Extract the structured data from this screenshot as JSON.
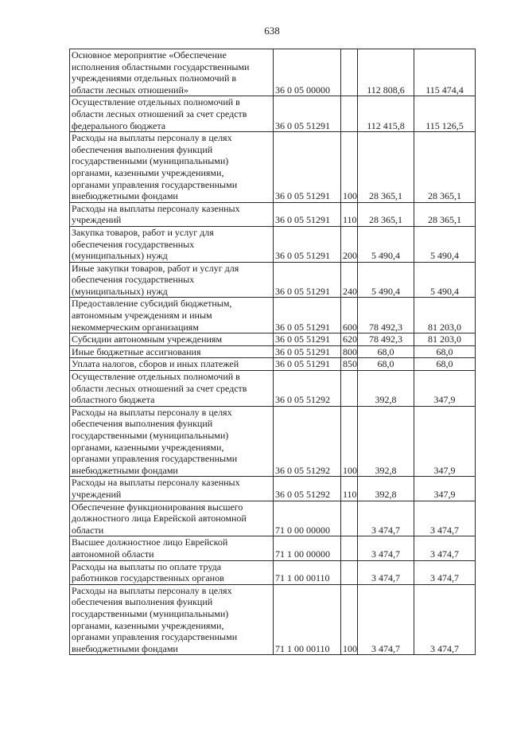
{
  "page": {
    "number": "638"
  },
  "table": {
    "columns": [
      "description",
      "code",
      "vid",
      "amount1",
      "amount2"
    ],
    "rows": [
      {
        "description": "Основное мероприятие «Обеспечение\nисполнения областными государственными\nучреждениями отдельных полномочий в\nобласти лесных отношений»",
        "code": "36 0 05 00000",
        "vid": "",
        "amount1": "112 808,6",
        "amount2": "115 474,4"
      },
      {
        "description": "Осуществление отдельных полномочий в\nобласти лесных отношений за счет средств\nфедерального бюджета",
        "code": "36 0 05 51291",
        "vid": "",
        "amount1": "112 415,8",
        "amount2": "115 126,5"
      },
      {
        "description": "Расходы на выплаты персоналу в целях\nобеспечения выполнения функций\nгосударственными (муниципальными)\nорганами, казенными учреждениями,\nорганами управления государственными\nвнебюджетными фондами",
        "code": "36 0 05 51291",
        "vid": "100",
        "amount1": "28 365,1",
        "amount2": "28 365,1"
      },
      {
        "description": "Расходы на выплаты персоналу казенных\nучреждений",
        "code": "36 0 05 51291",
        "vid": "110",
        "amount1": "28 365,1",
        "amount2": "28 365,1"
      },
      {
        "description": "Закупка товаров, работ и услуг для\nобеспечения государственных\n(муниципальных) нужд",
        "code": "36 0 05 51291",
        "vid": "200",
        "amount1": "5 490,4",
        "amount2": "5 490,4"
      },
      {
        "description": "Иные закупки товаров, работ и услуг для\nобеспечения государственных\n(муниципальных) нужд",
        "code": "36 0 05 51291",
        "vid": "240",
        "amount1": "5 490,4",
        "amount2": "5 490,4"
      },
      {
        "description": "Предоставление субсидий бюджетным,\nавтономным учреждениям и иным\nнекоммерческим организациям",
        "code": "36 0 05 51291",
        "vid": "600",
        "amount1": "78 492,3",
        "amount2": "81 203,0"
      },
      {
        "description": "Субсидии автономным учреждениям",
        "code": "36 0 05 51291",
        "vid": "620",
        "amount1": "78 492,3",
        "amount2": "81 203,0"
      },
      {
        "description": "Иные бюджетные ассигнования",
        "code": "36 0 05 51291",
        "vid": "800",
        "amount1": "68,0",
        "amount2": "68,0"
      },
      {
        "description": "Уплата налогов, сборов и иных платежей",
        "code": "36 0 05 51291",
        "vid": "850",
        "amount1": "68,0",
        "amount2": "68,0"
      },
      {
        "description": "Осуществление отдельных полномочий в\nобласти лесных отношений за счет средств\nобластного бюджета",
        "code": "36 0 05 51292",
        "vid": "",
        "amount1": "392,8",
        "amount2": "347,9"
      },
      {
        "description": "Расходы на выплаты персоналу в целях\nобеспечения выполнения функций\nгосударственными (муниципальными)\nорганами, казенными учреждениями,\nорганами управления государственными\nвнебюджетными фондами",
        "code": "36 0 05 51292",
        "vid": "100",
        "amount1": "392,8",
        "amount2": "347,9"
      },
      {
        "description": "Расходы на выплаты персоналу казенных\nучреждений",
        "code": "36 0 05 51292",
        "vid": "110",
        "amount1": "392,8",
        "amount2": "347,9"
      },
      {
        "description": "Обеспечение функционирования высшего\nдолжностного лица Еврейской автономной\nобласти",
        "code": "71 0 00 00000",
        "vid": "",
        "amount1": "3 474,7",
        "amount2": "3 474,7"
      },
      {
        "description": "Высшее должностное лицо Еврейской\nавтономной области",
        "code": "71 1 00 00000",
        "vid": "",
        "amount1": "3 474,7",
        "amount2": "3 474,7"
      },
      {
        "description": "Расходы на выплаты по оплате труда\nработников государственных органов",
        "code": "71 1 00 00110",
        "vid": "",
        "amount1": "3 474,7",
        "amount2": "3 474,7"
      },
      {
        "description": "Расходы на выплаты персоналу в целях\nобеспечения выполнения функций\nгосударственными (муниципальными)\nорганами, казенными учреждениями,\nорганами управления государственными\nвнебюджетными фондами",
        "code": "71 1 00 00110",
        "vid": "100",
        "amount1": "3 474,7",
        "amount2": "3 474,7"
      }
    ]
  }
}
